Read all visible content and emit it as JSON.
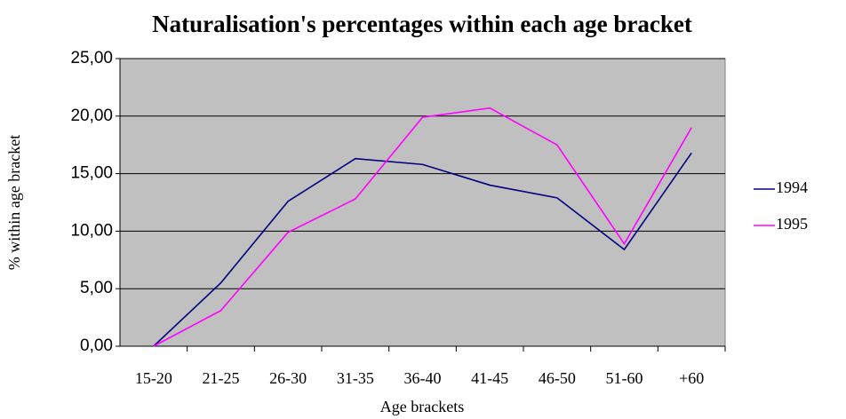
{
  "chart_data": {
    "type": "line",
    "title": "Naturalisation's percentages within each age bracket",
    "x_label": "Age brackets",
    "y_label": "% within age bracket",
    "categories": [
      "15-20",
      "21-25",
      "26-30",
      "31-35",
      "36-40",
      "41-45",
      "46-50",
      "51-60",
      "+60"
    ],
    "series": [
      {
        "name": "1994",
        "color": "#000080",
        "values": [
          0,
          5.5,
          12.6,
          16.3,
          15.8,
          14.0,
          12.9,
          8.4,
          16.8
        ]
      },
      {
        "name": "1995",
        "color": "#ff00ff",
        "values": [
          0,
          3.1,
          9.9,
          12.8,
          19.9,
          20.7,
          17.5,
          8.9,
          19.0
        ]
      }
    ],
    "ylim": [
      0,
      25
    ],
    "yticks": [
      {
        "value": 0,
        "label": "0,00"
      },
      {
        "value": 5,
        "label": "5,00"
      },
      {
        "value": 10,
        "label": "10,00"
      },
      {
        "value": 15,
        "label": "15,00"
      },
      {
        "value": 20,
        "label": "20,00"
      },
      {
        "value": 25,
        "label": "25,00"
      }
    ],
    "grid": true,
    "plot_background": "#c0c0c0",
    "legend": "right"
  }
}
